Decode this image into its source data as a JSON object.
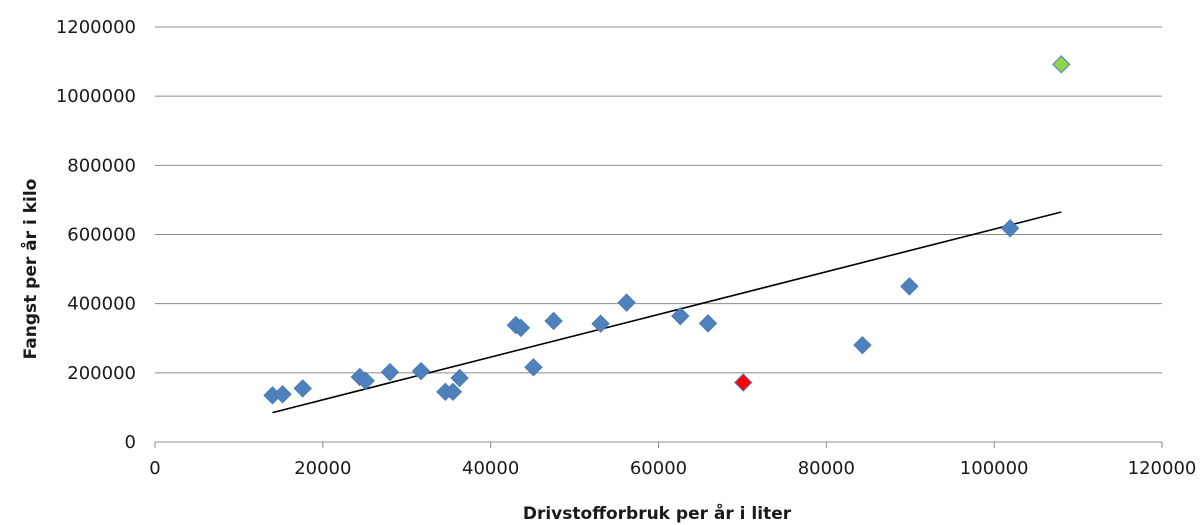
{
  "chart_data": {
    "type": "scatter",
    "title": "",
    "xlabel": "Drivstofforbruk per år i liter",
    "ylabel": "Fangst per år i kilo",
    "xlim": [
      0,
      120000
    ],
    "ylim": [
      0,
      1200000
    ],
    "x_ticks": [
      0,
      20000,
      40000,
      60000,
      80000,
      100000,
      120000
    ],
    "y_ticks": [
      0,
      200000,
      400000,
      600000,
      800000,
      1000000,
      1200000
    ],
    "x_tick_labels": [
      "0",
      "20000",
      "40000",
      "60000",
      "80000",
      "100000",
      "120000"
    ],
    "y_tick_labels": [
      "0",
      "200000",
      "400000",
      "600000",
      "800000",
      "1000000",
      "1200000"
    ],
    "grid": "horizontal",
    "marker": "diamond",
    "colors": {
      "default": "#4f81bd",
      "highlight_low": "#ff0000",
      "highlight_high": "#92d050"
    },
    "points": [
      {
        "x": 14000,
        "y": 135000,
        "color": "default"
      },
      {
        "x": 15200,
        "y": 138000,
        "color": "default"
      },
      {
        "x": 17600,
        "y": 155000,
        "color": "default"
      },
      {
        "x": 24400,
        "y": 188000,
        "color": "default"
      },
      {
        "x": 25100,
        "y": 177000,
        "color": "default"
      },
      {
        "x": 28000,
        "y": 202000,
        "color": "default"
      },
      {
        "x": 31700,
        "y": 205000,
        "color": "default"
      },
      {
        "x": 34600,
        "y": 145000,
        "color": "default"
      },
      {
        "x": 35500,
        "y": 145000,
        "color": "default"
      },
      {
        "x": 36300,
        "y": 185000,
        "color": "default"
      },
      {
        "x": 43000,
        "y": 338000,
        "color": "default"
      },
      {
        "x": 43600,
        "y": 330000,
        "color": "default"
      },
      {
        "x": 45100,
        "y": 216000,
        "color": "default"
      },
      {
        "x": 47500,
        "y": 350000,
        "color": "default"
      },
      {
        "x": 53100,
        "y": 342000,
        "color": "default"
      },
      {
        "x": 56200,
        "y": 403000,
        "color": "default"
      },
      {
        "x": 62600,
        "y": 364000,
        "color": "default"
      },
      {
        "x": 65900,
        "y": 343000,
        "color": "default"
      },
      {
        "x": 70100,
        "y": 172000,
        "color": "highlight_low"
      },
      {
        "x": 84300,
        "y": 280000,
        "color": "default"
      },
      {
        "x": 89900,
        "y": 450000,
        "color": "default"
      },
      {
        "x": 101900,
        "y": 618000,
        "color": "default"
      },
      {
        "x": 108000,
        "y": 1092000,
        "color": "highlight_high"
      }
    ],
    "trendline": {
      "type": "linear",
      "x_start": 14000,
      "y_start": 85000,
      "x_end": 108000,
      "y_end": 665000,
      "color": "#000000"
    }
  }
}
